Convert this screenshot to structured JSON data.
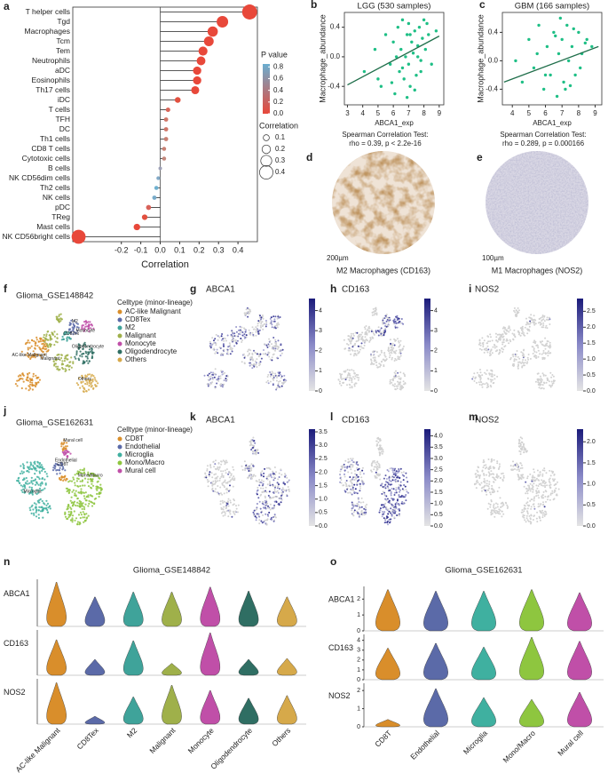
{
  "chart_data": [
    {
      "type": "lollipop",
      "panel": "a",
      "categories": [
        "T helper cells",
        "Tgd",
        "Macrophages",
        "Tcm",
        "Tem",
        "Neutrophils",
        "aDC",
        "Eosinophils",
        "Th17 cells",
        "iDC",
        "T cells",
        "TFH",
        "DC",
        "Th1 cells",
        "CD8 T cells",
        "Cytotoxic cells",
        "B cells",
        "NK CD56dim cells",
        "Th2 cells",
        "NK cells",
        "pDC",
        "TReg",
        "Mast cells",
        "NK CD56bright cells"
      ],
      "values": [
        0.46,
        0.32,
        0.27,
        0.25,
        0.22,
        0.21,
        0.19,
        0.19,
        0.18,
        0.09,
        0.04,
        0.03,
        0.03,
        0.03,
        0.02,
        0.02,
        0.0,
        -0.01,
        -0.02,
        -0.03,
        -0.06,
        -0.08,
        -0.12,
        -0.42
      ],
      "colors": [
        "#e8483a",
        "#e8483a",
        "#e8483a",
        "#e8483a",
        "#e8483a",
        "#e8483a",
        "#e8483a",
        "#e8483a",
        "#e8483a",
        "#e2503f",
        "#d8665a",
        "#cf7668",
        "#cf7668",
        "#c98072",
        "#c98072",
        "#c4887c",
        "#9fa2b8",
        "#82a9c6",
        "#6eb0cf",
        "#78abc9",
        "#d8625a",
        "#e2503f",
        "#e8483a",
        "#e8483a"
      ],
      "xlabel": "Correlation",
      "xlim": [
        -0.45,
        0.5
      ],
      "xticks": [
        -0.2,
        -0.1,
        {
          "value": 0,
          "label": "0.0"
        },
        0.1,
        0.2,
        0.3,
        0.4
      ],
      "p_value_title": "P value",
      "p_value_lim": [
        0,
        0.85
      ],
      "p_value_ticks": [
        0.8,
        0.6,
        0.4,
        0.2,
        {
          "value": 0,
          "label": "0.0"
        }
      ],
      "p_value_colors": [
        "#e8483a",
        "#6aaed0"
      ],
      "size_title": "Correlation",
      "size_ticks": [
        0.1,
        0.2,
        0.3,
        0.4
      ]
    },
    {
      "type": "scatter",
      "panel": "b",
      "title": "LGG (530 samples)",
      "xlabel": "ABCA1_exp",
      "ylabel": "Macrophage_abundance",
      "notes": [
        "Spearman Correlation Test:",
        "rho = 0.39, p < 2.2e-16"
      ],
      "color": "#1fbf86",
      "x": [
        4.1,
        4.8,
        5.2,
        5.5,
        5.8,
        6.0,
        6.1,
        6.3,
        6.4,
        6.5,
        6.6,
        6.7,
        6.8,
        6.9,
        7.0,
        7.0,
        7.1,
        7.2,
        7.3,
        7.4,
        7.5,
        7.6,
        7.7,
        7.8,
        7.9,
        8.0,
        8.1,
        8.3,
        8.5,
        8.8,
        5.0,
        5.9,
        6.2,
        6.6,
        7.1,
        7.4,
        7.8,
        8.2,
        6.9,
        7.6
      ],
      "values": [
        -0.2,
        0.1,
        -0.4,
        0.3,
        -0.1,
        0.2,
        -0.5,
        0.4,
        -0.2,
        0.1,
        0.5,
        -0.3,
        0.0,
        0.3,
        -0.1,
        0.45,
        -0.4,
        0.2,
        0.05,
        0.35,
        -0.25,
        0.15,
        0.4,
        -0.05,
        0.25,
        0.5,
        0.1,
        0.3,
        -0.1,
        0.35,
        -0.3,
        -0.35,
        0.0,
        -0.15,
        0.3,
        -0.45,
        -0.2,
        0.45,
        -0.55,
        0.0
      ],
      "trend": {
        "x": [
          3,
          9
        ],
        "y": [
          -0.38,
          0.28
        ]
      },
      "xlim": [
        2.8,
        9.3
      ],
      "xticks": [
        3,
        4,
        5,
        6,
        7,
        8,
        9
      ],
      "ylim": [
        -0.65,
        0.6
      ],
      "yticks": [
        -0.4,
        {
          "value": 0,
          "label": "0.0"
        },
        0.4
      ]
    },
    {
      "type": "scatter",
      "panel": "c",
      "title": "GBM (166 samples)",
      "xlabel": "ABCA1_exp",
      "ylabel": "Macrophage_abundance",
      "notes": [
        "Spearman Correlation Test:",
        "rho = 0.289, p = 0.000166"
      ],
      "color": "#1fbf86",
      "x": [
        4.2,
        4.6,
        5.0,
        5.3,
        5.6,
        5.9,
        6.1,
        6.3,
        6.5,
        6.7,
        6.8,
        7.0,
        7.1,
        7.3,
        7.4,
        7.6,
        7.8,
        8.0,
        8.2,
        8.5,
        8.8,
        5.5,
        6.0,
        6.6,
        7.2,
        7.7,
        8.1,
        6.9,
        7.5,
        8.4
      ],
      "values": [
        0.0,
        -0.3,
        0.3,
        -0.1,
        0.5,
        -0.4,
        0.2,
        -0.2,
        0.4,
        -0.5,
        0.1,
        0.3,
        -0.3,
        0.5,
        0.0,
        0.2,
        -0.2,
        0.4,
        0.1,
        0.3,
        0.2,
        0.1,
        -0.2,
        0.35,
        -0.4,
        0.45,
        -0.1,
        0.6,
        -0.35,
        0.25
      ],
      "trend": {
        "x": [
          3.5,
          9.2
        ],
        "y": [
          -0.3,
          0.2
        ]
      },
      "xlim": [
        3.4,
        9.4
      ],
      "xticks": [
        4,
        5,
        6,
        7,
        8,
        9
      ],
      "ylim": [
        -0.62,
        0.68
      ],
      "yticks": [
        -0.4,
        {
          "value": 0,
          "label": "0.0"
        },
        0.4
      ]
    },
    {
      "type": "umap",
      "panel": "f",
      "title": "Glioma_GSE148842",
      "legend_title": "Celltype (minor-lineage)",
      "categories": [
        "AC-like Malignant",
        "CD8Tex",
        "M2",
        "Malignant",
        "Monocyte",
        "Oligodendrocyte",
        "Others"
      ],
      "colors": [
        "#d98e2b",
        "#5b6aa8",
        "#3fa39a",
        "#9fb04a",
        "#c04fa8",
        "#2f6e63",
        "#d6a94a"
      ]
    },
    {
      "type": "feature",
      "panel": "g",
      "title": "ABCA1",
      "colorbar_lim": [
        0,
        4.6
      ],
      "colorbar_ticks": [
        0,
        1,
        2,
        3,
        4
      ]
    },
    {
      "type": "feature",
      "panel": "h",
      "title": "CD163",
      "colorbar_lim": [
        0,
        4.6
      ],
      "colorbar_ticks": [
        0,
        1,
        2,
        3,
        4
      ]
    },
    {
      "type": "feature",
      "panel": "i",
      "title": "NOS2",
      "colorbar_lim": [
        0,
        2.9
      ],
      "colorbar_ticks": [
        {
          "value": 0,
          "label": "0.0"
        },
        0.5,
        {
          "value": 1,
          "label": "1.0"
        },
        1.5,
        {
          "value": 2,
          "label": "2.0"
        },
        2.5
      ]
    },
    {
      "type": "umap",
      "panel": "j",
      "title": "Glioma_GSE162631",
      "legend_title": "Celltype (minor-lineage)",
      "categories": [
        "CD8T",
        "Endothelial",
        "Microglia",
        "Mono/Macro",
        "Mural cell"
      ],
      "colors": [
        "#d98e2b",
        "#5b6aa8",
        "#3fb0a0",
        "#8ec63f",
        "#c04fa8"
      ]
    },
    {
      "type": "feature",
      "panel": "k",
      "title": "ABCA1",
      "colorbar_lim": [
        0,
        3.6
      ],
      "colorbar_ticks": [
        {
          "value": 0,
          "label": "0.0"
        },
        0.5,
        {
          "value": 1,
          "label": "1.0"
        },
        1.5,
        {
          "value": 2,
          "label": "2.0"
        },
        2.5,
        {
          "value": 3,
          "label": "3.0"
        },
        3.5
      ]
    },
    {
      "type": "feature",
      "panel": "l",
      "title": "CD163",
      "colorbar_lim": [
        0,
        4.3
      ],
      "colorbar_ticks": [
        {
          "value": 0,
          "label": "0.0"
        },
        0.5,
        {
          "value": 1,
          "label": "1.0"
        },
        1.5,
        {
          "value": 2,
          "label": "2.0"
        },
        2.5,
        {
          "value": 3,
          "label": "3.0"
        },
        3.5,
        {
          "value": 4,
          "label": "4.0"
        }
      ]
    },
    {
      "type": "feature",
      "panel": "m",
      "title": "NOS2",
      "colorbar_lim": [
        0,
        2.3
      ],
      "colorbar_ticks": [
        {
          "value": 0,
          "label": "0.0"
        },
        0.5,
        {
          "value": 1,
          "label": "1.0"
        },
        1.5,
        {
          "value": 2,
          "label": "2.0"
        }
      ]
    },
    {
      "type": "violin",
      "panel": "n",
      "title": "Glioma_GSE148842",
      "categories": [
        "AC-like Malignant",
        "CD8Tex",
        "M2",
        "Malignant",
        "Monocyte",
        "Oligodendrocyte",
        "Others"
      ],
      "colors": [
        "#d98e2b",
        "#5b6aa8",
        "#3fa39a",
        "#9fb04a",
        "#c04fa8",
        "#2f6e63",
        "#d6a94a"
      ],
      "series": [
        {
          "name": "ABCA1",
          "values": [
            4.5,
            3.0,
            3.5,
            3.5,
            4.0,
            3.6,
            3.0
          ],
          "ylim": [
            0,
            4.8
          ]
        },
        {
          "name": "CD163",
          "values": [
            3.6,
            1.6,
            3.5,
            1.2,
            4.3,
            1.6,
            1.7
          ],
          "ylim": [
            0,
            4.6
          ]
        },
        {
          "name": "NOS2",
          "values": [
            3.2,
            0.6,
            2.1,
            3.0,
            2.6,
            2.0,
            2.2
          ],
          "ylim": [
            0,
            3.5
          ]
        }
      ]
    },
    {
      "type": "violin",
      "panel": "o",
      "title": "Glioma_GSE162631",
      "categories": [
        "CD8T",
        "Endothelial",
        "Microglia",
        "Mono/Macro",
        "Mural cell"
      ],
      "colors": [
        "#d98e2b",
        "#5b6aa8",
        "#3fb0a0",
        "#8ec63f",
        "#c04fa8"
      ],
      "series": [
        {
          "name": "ABCA1",
          "values": [
            2.6,
            2.5,
            2.5,
            2.6,
            2.4
          ],
          "ylim": [
            0,
            2.8
          ],
          "yticks": [
            0,
            1,
            2
          ]
        },
        {
          "name": "CD163",
          "values": [
            3.2,
            3.7,
            3.3,
            4.3,
            3.9
          ],
          "ylim": [
            0,
            4.6
          ],
          "yticks": [
            0,
            1,
            2,
            3,
            4
          ]
        },
        {
          "name": "NOS2",
          "values": [
            0.4,
            2.1,
            1.6,
            1.5,
            1.9
          ],
          "ylim": [
            0,
            2.4
          ],
          "yticks": [
            0,
            1,
            2
          ]
        }
      ]
    }
  ],
  "images": [
    {
      "panel": "d",
      "scale": "200µm",
      "caption": "M2 Macrophages (CD163)"
    },
    {
      "panel": "e",
      "scale": "100µm",
      "caption": "M1 Macrophages (NOS2)"
    }
  ]
}
